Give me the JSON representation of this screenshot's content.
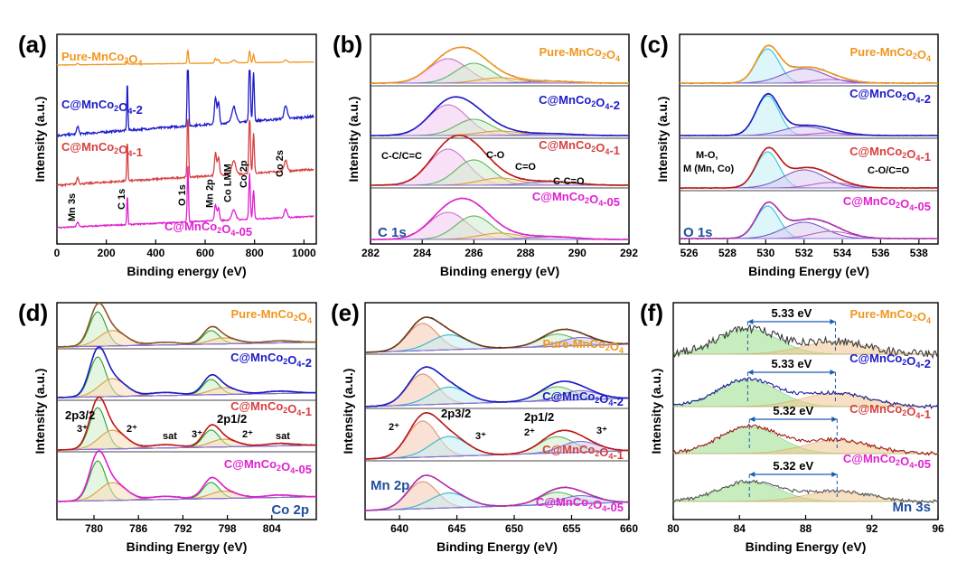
{
  "chart_data": [
    {
      "panel": "(a)",
      "type": "line",
      "xlabel": "Binding energy (eV)",
      "ylabel": "Intensity (a.u.)",
      "xlim": [
        0,
        1050
      ],
      "xticks": [
        "0",
        "200",
        "400",
        "600",
        "800",
        "1000"
      ],
      "series": [
        {
          "name": "Pure-MnCo2O4",
          "label_main": "Pure-MnCo",
          "sub1": "2",
          "mid": "O",
          "sub2": "4",
          "color": "#f0961e"
        },
        {
          "name": "C@MnCo2O4-2",
          "label_main": "C@MnCo",
          "sub1": "2",
          "mid": "O",
          "sub2": "4",
          "suffix": "-2",
          "color": "#1c1cc8"
        },
        {
          "name": "C@MnCo2O4-1",
          "label_main": "C@MnCo",
          "sub1": "2",
          "mid": "O",
          "sub2": "4",
          "suffix": "-1",
          "color": "#d84040"
        },
        {
          "name": "C@MnCo2O4-05",
          "label_main": "C@MnCo",
          "sub1": "2",
          "mid": "O",
          "sub2": "4",
          "suffix": "-05",
          "color": "#e020d0"
        }
      ],
      "peak_labels": [
        "Mn 3s",
        "C 1s",
        "O 1s",
        "Mn 2p",
        "Co LMM",
        "Co 2p",
        "Co 2s"
      ],
      "peaks": [
        {
          "label": "Mn 3s",
          "x": 84
        },
        {
          "label": "C 1s",
          "x": 285
        },
        {
          "label": "O 1s",
          "x": 530
        },
        {
          "label": "Mn 2p",
          "x": 642
        },
        {
          "label": "Co LMM",
          "x": 716
        },
        {
          "label": "Co 2p",
          "x": 780
        },
        {
          "label": "Co 2s",
          "x": 926
        }
      ]
    },
    {
      "panel": "(b)",
      "type": "line",
      "inset": "C 1s",
      "xlabel": "Binding energy (eV)",
      "ylabel": "Intensity (a.u.)",
      "xlim": [
        282,
        292
      ],
      "xticks": [
        "282",
        "284",
        "286",
        "288",
        "290",
        "292"
      ],
      "peaks": [
        {
          "label": "C-C/C=C",
          "x": 285.0
        },
        {
          "label": "C-O",
          "x": 286.0
        },
        {
          "label": "C=O",
          "x": 287.0
        },
        {
          "label": "C-C=O",
          "x": 289.0
        }
      ]
    },
    {
      "panel": "(c)",
      "type": "line",
      "inset": "O 1s",
      "xlabel": "Binding Energy (eV)",
      "ylabel": "Intensity (a.u.)",
      "xlim": [
        525.5,
        539
      ],
      "xticks": [
        "526",
        "528",
        "530",
        "532",
        "534",
        "536",
        "538"
      ],
      "peaks": [
        {
          "label": "M-O,",
          "label2": "M (Mn, Co)",
          "x": 530.1
        },
        {
          "label": "C-O/C=O",
          "x": 532.0
        }
      ]
    },
    {
      "panel": "(d)",
      "type": "line",
      "inset": "Co 2p",
      "xlabel": "Binding Energy (eV)",
      "ylabel": "Intensity (a.u.)",
      "xlim": [
        775,
        810
      ],
      "xticks": [
        "780",
        "786",
        "792",
        "798",
        "804"
      ],
      "labels": {
        "p32": "2p3/2",
        "p12": "2p1/2",
        "sat": "sat",
        "co3": "3⁺",
        "co2": "2⁺"
      },
      "peaks": [
        {
          "label": "Co 2p3/2",
          "x": 780.5
        },
        {
          "label": "Co 2p1/2",
          "x": 795.8
        },
        {
          "label": "sat",
          "x": 789.5
        },
        {
          "label": "sat",
          "x": 805
        }
      ]
    },
    {
      "panel": "(e)",
      "type": "line",
      "inset": "Mn 2p",
      "xlabel": "Binding Energy (eV)",
      "ylabel": "Intensity (a.u.)",
      "xlim": [
        637,
        660
      ],
      "xticks": [
        "640",
        "645",
        "650",
        "655",
        "660"
      ],
      "labels": {
        "p32": "2p3/2",
        "p12": "2p1/2",
        "mn2": "2⁺",
        "mn3": "3⁺"
      },
      "peaks": [
        {
          "label": "Mn 2p3/2",
          "x": 642.5
        },
        {
          "label": "Mn 2p1/2",
          "x": 654.2
        }
      ]
    },
    {
      "panel": "(f)",
      "type": "line",
      "inset": "Mn 3s",
      "xlabel": "Binding Energy (eV)",
      "ylabel": "Intensity (a.u.)",
      "xlim": [
        80,
        96
      ],
      "xticks": [
        "80",
        "84",
        "88",
        "92",
        "96"
      ],
      "splitting": [
        {
          "series": "Pure-MnCo2O4",
          "value": "5.33 eV",
          "x1": 84.5,
          "x2": 89.8
        },
        {
          "series": "C@MnCo2O4-2",
          "value": "5.33 eV",
          "x1": 84.5,
          "x2": 89.8
        },
        {
          "series": "C@MnCo2O4-1",
          "value": "5.32 eV",
          "x1": 84.6,
          "x2": 89.9
        },
        {
          "series": "C@MnCo2O4-05",
          "value": "5.32 eV",
          "x1": 84.6,
          "x2": 89.9
        }
      ]
    }
  ]
}
